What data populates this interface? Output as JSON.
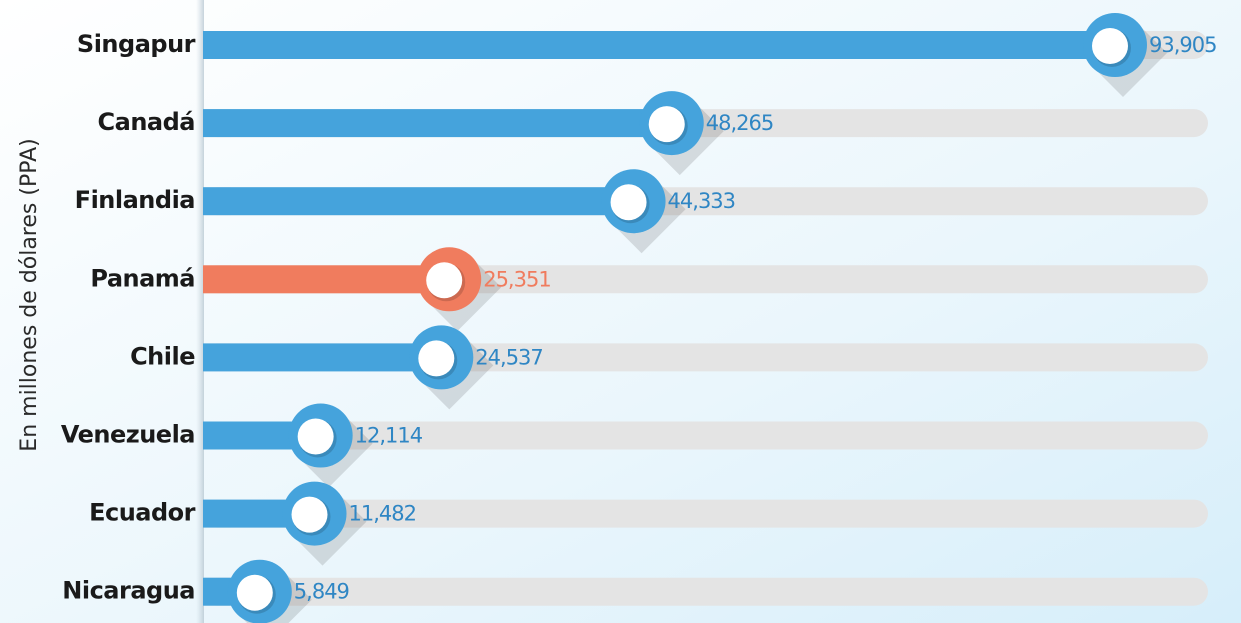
{
  "chart_data": {
    "type": "bar",
    "orientation": "horizontal",
    "y_label": "En millones de dólares (PPA)",
    "categories": [
      "Singapur",
      "Canadá",
      "Finlandia",
      "Panamá",
      "Chile",
      "Venezuela",
      "Ecuador",
      "Nicaragua"
    ],
    "values": [
      93905,
      48265,
      44333,
      25351,
      24537,
      12114,
      11482,
      5849
    ],
    "value_labels": [
      "93,905",
      "48,265",
      "44,333",
      "25,351",
      "24,537",
      "12,114",
      "11,482",
      "5,849"
    ],
    "colors": [
      "#45a3dc",
      "#45a3dc",
      "#45a3dc",
      "#f07c5e",
      "#45a3dc",
      "#45a3dc",
      "#45a3dc",
      "#45a3dc"
    ]
  }
}
